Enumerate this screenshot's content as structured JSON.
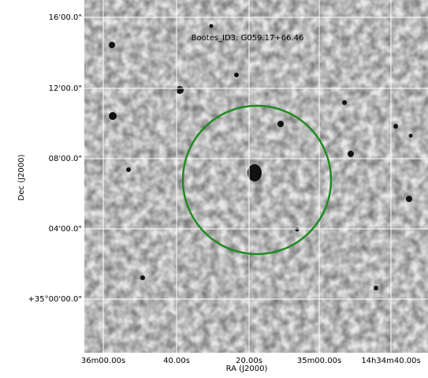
{
  "figure": {
    "title": "Bootes_ID3: G059.17+66.46",
    "x_axis": {
      "label": "RA (J2000)",
      "ticks": [
        "36m00.00s",
        "40.00s",
        "20.00s",
        "35m00.00s",
        "14h34m40.00s"
      ]
    },
    "y_axis": {
      "label": "Dec (J2000)",
      "ticks": [
        "16'00.0\"",
        "12'00.0\"",
        "08'00.0\"",
        "04'00.0\"",
        "+35°00'00.0\""
      ]
    }
  }
}
